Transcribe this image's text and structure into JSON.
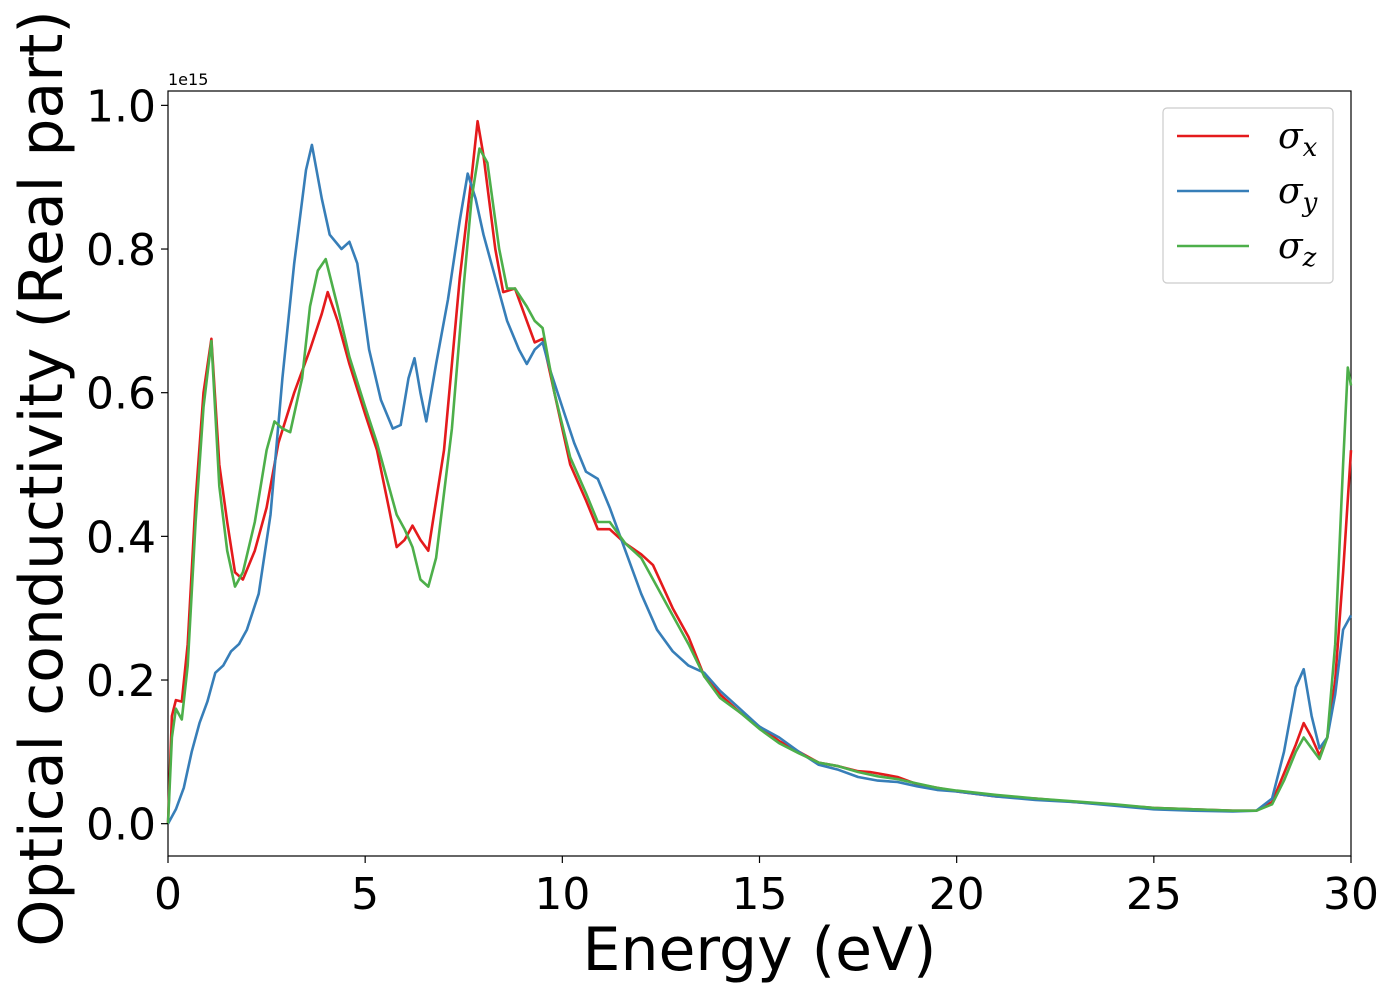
{
  "chart_data": {
    "type": "line",
    "xlabel": "Energy (eV)",
    "ylabel": "Optical conductivity (Real part)",
    "offset_text": "1e15",
    "xlim": [
      0,
      30
    ],
    "ylim": [
      -0.045,
      1.02
    ],
    "xticks": [
      0,
      5,
      10,
      15,
      20,
      25,
      30
    ],
    "xtick_labels": [
      "0",
      "5",
      "10",
      "15",
      "20",
      "25",
      "30"
    ],
    "yticks": [
      0.0,
      0.2,
      0.4,
      0.6,
      0.8,
      1.0
    ],
    "ytick_labels": [
      "0.0",
      "0.2",
      "0.4",
      "0.6",
      "0.8",
      "1.0"
    ],
    "legend_position": "top-right",
    "series": [
      {
        "name": "σx",
        "symbol": "σ",
        "subscript": "x",
        "color": "#e41a1c",
        "points": [
          [
            0,
            0
          ],
          [
            0.1,
            0.15
          ],
          [
            0.2,
            0.172
          ],
          [
            0.35,
            0.17
          ],
          [
            0.5,
            0.25
          ],
          [
            0.7,
            0.45
          ],
          [
            0.9,
            0.6
          ],
          [
            1.1,
            0.675
          ],
          [
            1.3,
            0.5
          ],
          [
            1.5,
            0.42
          ],
          [
            1.7,
            0.35
          ],
          [
            1.9,
            0.34
          ],
          [
            2.2,
            0.38
          ],
          [
            2.5,
            0.44
          ],
          [
            2.8,
            0.53
          ],
          [
            3.2,
            0.6
          ],
          [
            3.6,
            0.66
          ],
          [
            3.9,
            0.71
          ],
          [
            4.05,
            0.74
          ],
          [
            4.3,
            0.7
          ],
          [
            4.6,
            0.64
          ],
          [
            5.0,
            0.57
          ],
          [
            5.3,
            0.52
          ],
          [
            5.6,
            0.44
          ],
          [
            5.8,
            0.385
          ],
          [
            6.0,
            0.395
          ],
          [
            6.2,
            0.415
          ],
          [
            6.4,
            0.395
          ],
          [
            6.6,
            0.38
          ],
          [
            7.0,
            0.52
          ],
          [
            7.4,
            0.76
          ],
          [
            7.7,
            0.9
          ],
          [
            7.85,
            0.978
          ],
          [
            8.0,
            0.93
          ],
          [
            8.3,
            0.8
          ],
          [
            8.5,
            0.74
          ],
          [
            8.8,
            0.745
          ],
          [
            9.1,
            0.7
          ],
          [
            9.3,
            0.67
          ],
          [
            9.5,
            0.675
          ],
          [
            9.8,
            0.6
          ],
          [
            10.2,
            0.5
          ],
          [
            10.6,
            0.45
          ],
          [
            10.9,
            0.41
          ],
          [
            11.2,
            0.41
          ],
          [
            11.6,
            0.39
          ],
          [
            12.0,
            0.375
          ],
          [
            12.3,
            0.36
          ],
          [
            12.8,
            0.3
          ],
          [
            13.2,
            0.26
          ],
          [
            13.6,
            0.205
          ],
          [
            14.0,
            0.18
          ],
          [
            14.5,
            0.155
          ],
          [
            15.0,
            0.135
          ],
          [
            15.5,
            0.115
          ],
          [
            16.0,
            0.1
          ],
          [
            16.5,
            0.085
          ],
          [
            17.0,
            0.08
          ],
          [
            17.5,
            0.073
          ],
          [
            17.8,
            0.072
          ],
          [
            18.0,
            0.07
          ],
          [
            18.5,
            0.065
          ],
          [
            19.0,
            0.055
          ],
          [
            19.5,
            0.05
          ],
          [
            20.0,
            0.045
          ],
          [
            21.0,
            0.038
          ],
          [
            22.0,
            0.035
          ],
          [
            23.0,
            0.03
          ],
          [
            24.0,
            0.026
          ],
          [
            25.0,
            0.022
          ],
          [
            26.0,
            0.02
          ],
          [
            27.0,
            0.018
          ],
          [
            27.6,
            0.018
          ],
          [
            28.0,
            0.03
          ],
          [
            28.3,
            0.07
          ],
          [
            28.6,
            0.11
          ],
          [
            28.8,
            0.14
          ],
          [
            29.0,
            0.12
          ],
          [
            29.2,
            0.095
          ],
          [
            29.4,
            0.12
          ],
          [
            29.6,
            0.2
          ],
          [
            29.8,
            0.35
          ],
          [
            30.0,
            0.52
          ]
        ]
      },
      {
        "name": "σy",
        "symbol": "σ",
        "subscript": "y",
        "color": "#377eb8",
        "points": [
          [
            0,
            0
          ],
          [
            0.2,
            0.02
          ],
          [
            0.4,
            0.05
          ],
          [
            0.6,
            0.1
          ],
          [
            0.8,
            0.14
          ],
          [
            1.0,
            0.17
          ],
          [
            1.2,
            0.21
          ],
          [
            1.4,
            0.22
          ],
          [
            1.6,
            0.24
          ],
          [
            1.8,
            0.25
          ],
          [
            2.0,
            0.27
          ],
          [
            2.3,
            0.32
          ],
          [
            2.6,
            0.43
          ],
          [
            2.9,
            0.62
          ],
          [
            3.2,
            0.78
          ],
          [
            3.5,
            0.91
          ],
          [
            3.65,
            0.945
          ],
          [
            3.9,
            0.87
          ],
          [
            4.1,
            0.82
          ],
          [
            4.4,
            0.8
          ],
          [
            4.6,
            0.81
          ],
          [
            4.8,
            0.78
          ],
          [
            5.1,
            0.66
          ],
          [
            5.4,
            0.59
          ],
          [
            5.7,
            0.55
          ],
          [
            5.9,
            0.555
          ],
          [
            6.1,
            0.62
          ],
          [
            6.25,
            0.648
          ],
          [
            6.4,
            0.6
          ],
          [
            6.55,
            0.56
          ],
          [
            6.8,
            0.64
          ],
          [
            7.1,
            0.73
          ],
          [
            7.4,
            0.84
          ],
          [
            7.6,
            0.905
          ],
          [
            7.8,
            0.87
          ],
          [
            8.0,
            0.82
          ],
          [
            8.3,
            0.76
          ],
          [
            8.6,
            0.7
          ],
          [
            8.9,
            0.66
          ],
          [
            9.1,
            0.64
          ],
          [
            9.3,
            0.66
          ],
          [
            9.5,
            0.67
          ],
          [
            9.7,
            0.63
          ],
          [
            10.0,
            0.58
          ],
          [
            10.3,
            0.53
          ],
          [
            10.6,
            0.49
          ],
          [
            10.9,
            0.48
          ],
          [
            11.2,
            0.44
          ],
          [
            11.6,
            0.38
          ],
          [
            12.0,
            0.32
          ],
          [
            12.4,
            0.27
          ],
          [
            12.8,
            0.24
          ],
          [
            13.2,
            0.22
          ],
          [
            13.6,
            0.21
          ],
          [
            14.0,
            0.185
          ],
          [
            14.5,
            0.16
          ],
          [
            15.0,
            0.135
          ],
          [
            15.5,
            0.12
          ],
          [
            16.0,
            0.1
          ],
          [
            16.5,
            0.082
          ],
          [
            17.0,
            0.075
          ],
          [
            17.5,
            0.065
          ],
          [
            18.0,
            0.06
          ],
          [
            18.5,
            0.058
          ],
          [
            19.0,
            0.052
          ],
          [
            19.5,
            0.047
          ],
          [
            20.0,
            0.045
          ],
          [
            21.0,
            0.038
          ],
          [
            22.0,
            0.033
          ],
          [
            23.0,
            0.03
          ],
          [
            24.0,
            0.025
          ],
          [
            25.0,
            0.02
          ],
          [
            26.0,
            0.018
          ],
          [
            27.0,
            0.017
          ],
          [
            27.6,
            0.018
          ],
          [
            28.0,
            0.035
          ],
          [
            28.3,
            0.1
          ],
          [
            28.6,
            0.19
          ],
          [
            28.8,
            0.215
          ],
          [
            29.0,
            0.15
          ],
          [
            29.2,
            0.105
          ],
          [
            29.4,
            0.12
          ],
          [
            29.6,
            0.18
          ],
          [
            29.8,
            0.27
          ],
          [
            30.0,
            0.29
          ]
        ]
      },
      {
        "name": "σz",
        "symbol": "σ",
        "subscript": "z",
        "color": "#4daf4a",
        "points": [
          [
            0,
            0
          ],
          [
            0.1,
            0.12
          ],
          [
            0.2,
            0.16
          ],
          [
            0.35,
            0.145
          ],
          [
            0.5,
            0.22
          ],
          [
            0.7,
            0.42
          ],
          [
            0.9,
            0.58
          ],
          [
            1.1,
            0.672
          ],
          [
            1.3,
            0.47
          ],
          [
            1.5,
            0.38
          ],
          [
            1.7,
            0.33
          ],
          [
            1.9,
            0.35
          ],
          [
            2.2,
            0.42
          ],
          [
            2.5,
            0.52
          ],
          [
            2.7,
            0.56
          ],
          [
            2.9,
            0.55
          ],
          [
            3.1,
            0.545
          ],
          [
            3.4,
            0.62
          ],
          [
            3.6,
            0.72
          ],
          [
            3.8,
            0.77
          ],
          [
            4.0,
            0.786
          ],
          [
            4.3,
            0.72
          ],
          [
            4.6,
            0.65
          ],
          [
            5.0,
            0.58
          ],
          [
            5.3,
            0.53
          ],
          [
            5.6,
            0.47
          ],
          [
            5.8,
            0.43
          ],
          [
            6.0,
            0.41
          ],
          [
            6.2,
            0.385
          ],
          [
            6.4,
            0.34
          ],
          [
            6.6,
            0.33
          ],
          [
            6.8,
            0.37
          ],
          [
            7.2,
            0.55
          ],
          [
            7.5,
            0.75
          ],
          [
            7.7,
            0.87
          ],
          [
            7.9,
            0.94
          ],
          [
            8.1,
            0.92
          ],
          [
            8.4,
            0.8
          ],
          [
            8.6,
            0.745
          ],
          [
            8.8,
            0.745
          ],
          [
            9.1,
            0.72
          ],
          [
            9.3,
            0.7
          ],
          [
            9.5,
            0.69
          ],
          [
            9.8,
            0.6
          ],
          [
            10.2,
            0.51
          ],
          [
            10.6,
            0.46
          ],
          [
            10.9,
            0.42
          ],
          [
            11.2,
            0.42
          ],
          [
            11.6,
            0.39
          ],
          [
            12.0,
            0.37
          ],
          [
            12.4,
            0.33
          ],
          [
            12.8,
            0.29
          ],
          [
            13.2,
            0.25
          ],
          [
            13.6,
            0.205
          ],
          [
            14.0,
            0.175
          ],
          [
            14.5,
            0.155
          ],
          [
            15.0,
            0.132
          ],
          [
            15.5,
            0.112
          ],
          [
            16.0,
            0.098
          ],
          [
            16.5,
            0.085
          ],
          [
            17.0,
            0.08
          ],
          [
            17.5,
            0.072
          ],
          [
            18.0,
            0.066
          ],
          [
            18.5,
            0.062
          ],
          [
            19.0,
            0.056
          ],
          [
            19.5,
            0.05
          ],
          [
            20.0,
            0.046
          ],
          [
            21.0,
            0.04
          ],
          [
            22.0,
            0.035
          ],
          [
            23.0,
            0.031
          ],
          [
            24.0,
            0.027
          ],
          [
            25.0,
            0.022
          ],
          [
            26.0,
            0.02
          ],
          [
            27.0,
            0.018
          ],
          [
            27.6,
            0.018
          ],
          [
            28.0,
            0.027
          ],
          [
            28.3,
            0.06
          ],
          [
            28.6,
            0.1
          ],
          [
            28.8,
            0.12
          ],
          [
            29.0,
            0.105
          ],
          [
            29.2,
            0.09
          ],
          [
            29.4,
            0.12
          ],
          [
            29.6,
            0.25
          ],
          [
            29.8,
            0.5
          ],
          [
            29.92,
            0.635
          ],
          [
            30.0,
            0.61
          ]
        ]
      }
    ]
  }
}
